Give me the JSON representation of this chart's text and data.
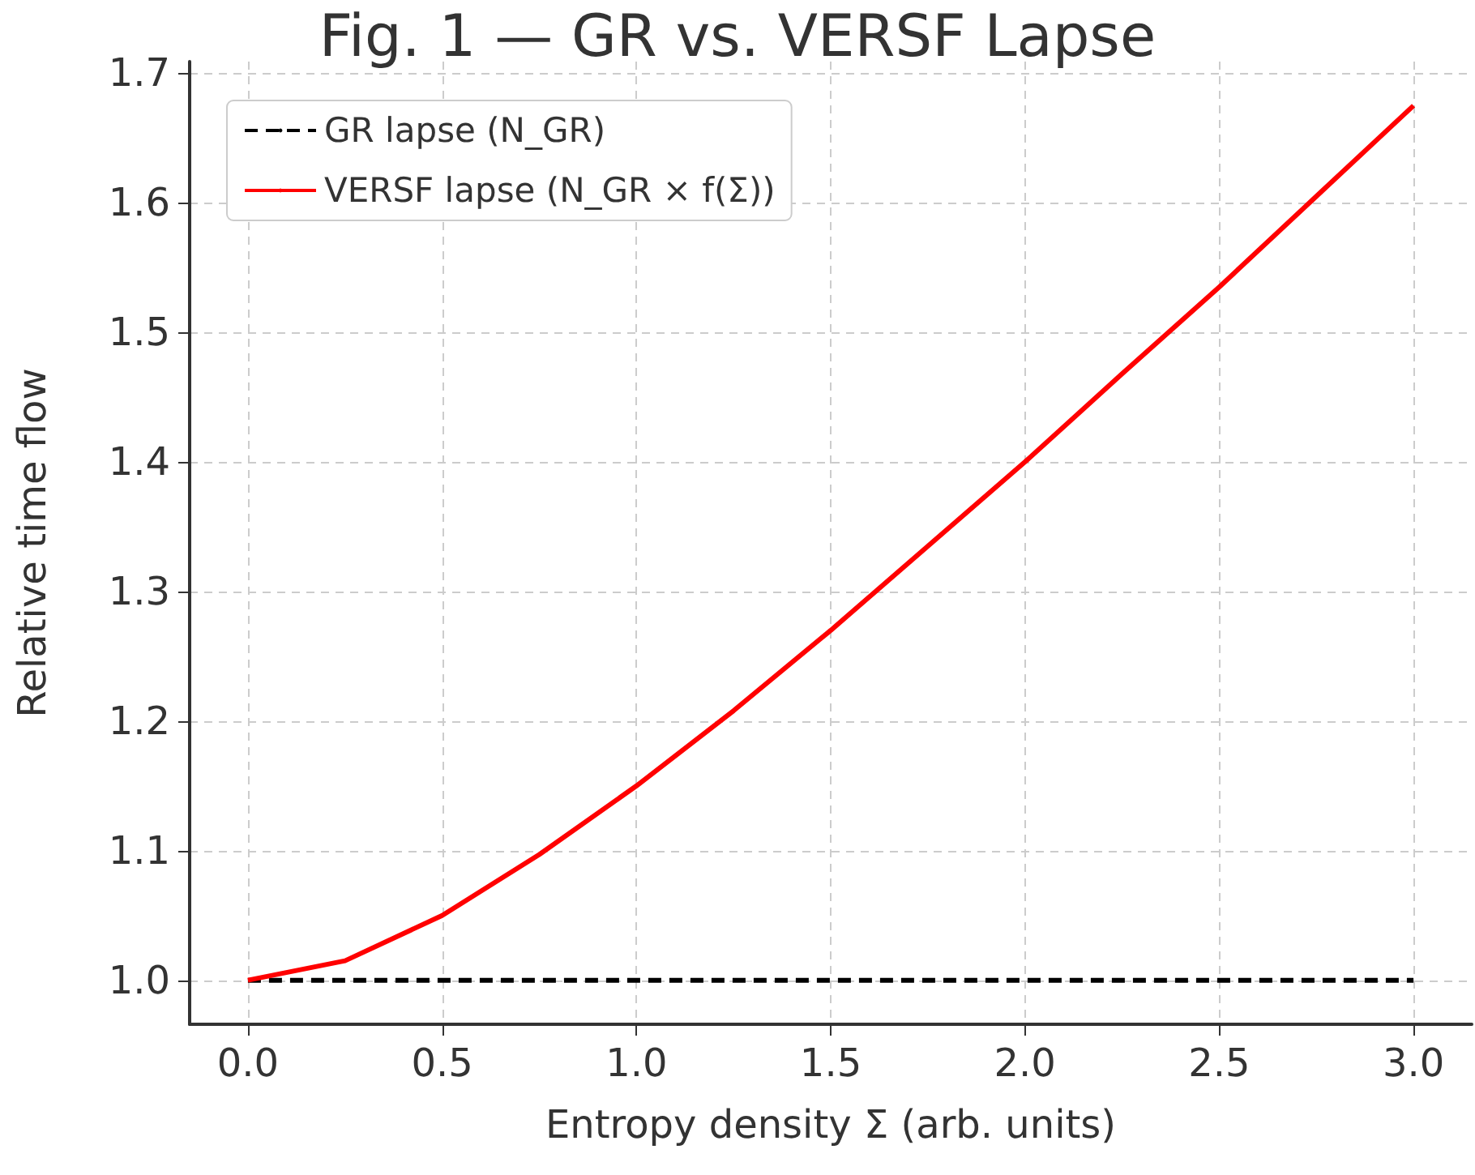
{
  "chart_data": {
    "type": "line",
    "title": "Fig. 1 — GR vs. VERSF Lapse",
    "xlabel": "Entropy density Σ (arb. units)",
    "ylabel": "Relative time flow",
    "series": [
      {
        "name": "GR lapse (N_GR)",
        "color": "#000000",
        "line_style": "dashed",
        "x": [
          0,
          3
        ],
        "values": [
          1.0,
          1.0
        ]
      },
      {
        "name": "VERSF lapse (N_GR × f(Σ))",
        "color": "#ff0000",
        "line_style": "solid",
        "x": [
          0,
          0.25,
          0.5,
          0.75,
          1.0,
          1.25,
          1.5,
          1.75,
          2.0,
          2.25,
          2.5,
          2.75,
          3.0
        ],
        "values": [
          1.0,
          1.015,
          1.05,
          1.097,
          1.15,
          1.208,
          1.27,
          1.335,
          1.4,
          1.468,
          1.535,
          1.605,
          1.675
        ]
      }
    ],
    "xlim": [
      -0.15,
      3.15
    ],
    "xticks": [
      {
        "value": 0,
        "label": "0.0"
      },
      0.5,
      {
        "value": 1,
        "label": "1.0"
      },
      1.5,
      {
        "value": 2,
        "label": "2.0"
      },
      2.5,
      {
        "value": 3,
        "label": "3.0"
      }
    ],
    "ylim": [
      0.966,
      1.709
    ],
    "yticks": [
      {
        "value": 1,
        "label": "1.0"
      },
      1.1,
      1.2,
      1.3,
      1.4,
      1.5,
      1.6,
      1.7
    ],
    "grid": true,
    "legend": "top left",
    "marker": "none"
  }
}
